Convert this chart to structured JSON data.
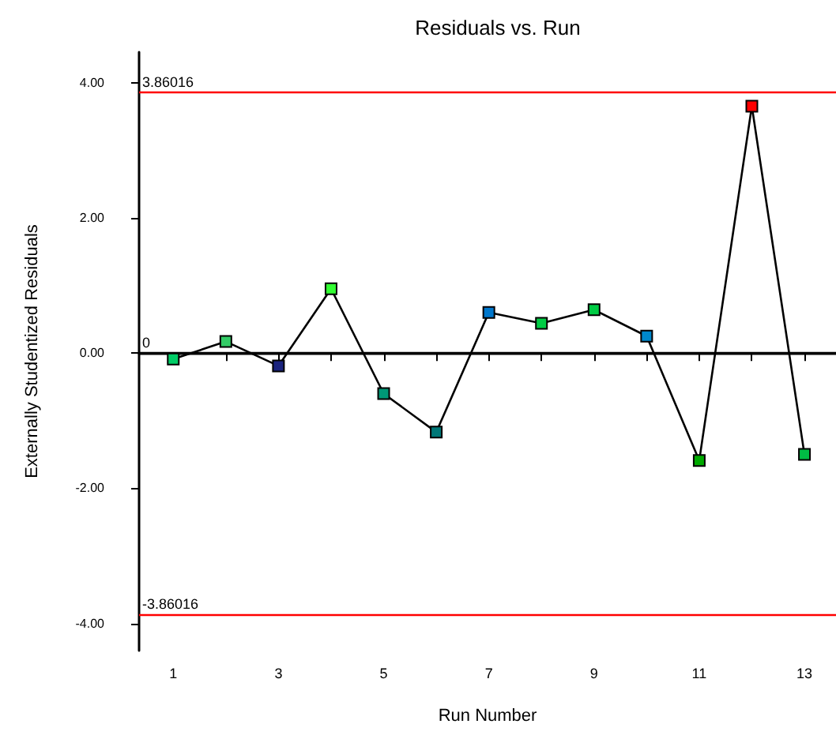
{
  "chart_data": {
    "type": "line",
    "title": "Residuals vs. Run",
    "xlabel": "Run Number",
    "ylabel": "Externally Studentized Residuals",
    "x": [
      1,
      2,
      3,
      4,
      5,
      6,
      7,
      8,
      9,
      10,
      11,
      12,
      13
    ],
    "series": [
      {
        "color": "#000000",
        "colors": [
          "#00cc66",
          "#33cc66",
          "#1a237e",
          "#33ff33",
          "#009977",
          "#007777",
          "#0077cc",
          "#00cc44",
          "#00cc44",
          "#0088cc",
          "#00aa00",
          "#ff0000",
          "#00bb44"
        ],
        "values": [
          -0.09,
          0.17,
          -0.19,
          0.95,
          -0.6,
          -1.17,
          0.6,
          0.44,
          0.64,
          0.25,
          -1.59,
          3.65,
          -1.5
        ]
      }
    ],
    "xlim": [
      0.35,
      13.6
    ],
    "xticks": [
      1,
      {
        "value": 2,
        "label": null
      },
      3,
      {
        "value": 4,
        "label": null
      },
      5,
      {
        "value": 6,
        "label": null
      },
      7,
      {
        "value": 8,
        "label": null
      },
      9,
      {
        "value": 10,
        "label": null
      },
      11,
      {
        "value": 12,
        "label": null
      },
      13
    ],
    "ylim": [
      -4.4,
      4.45
    ],
    "yticks": [
      {
        "value": -4,
        "label": "-4.00"
      },
      {
        "value": -2,
        "label": "-2.00"
      },
      {
        "value": 0,
        "label": "0.00"
      },
      {
        "value": 2,
        "label": "2.00"
      },
      {
        "value": 4,
        "label": "4.00"
      }
    ],
    "ref_lines": [
      {
        "axis": "y",
        "value": 3.86016,
        "label": "3.86016",
        "color": "#ff0000"
      },
      {
        "axis": "y",
        "value": 0,
        "label": "0",
        "color": "#000000"
      },
      {
        "axis": "y",
        "value": -3.86016,
        "label": "-3.86016",
        "color": "#ff0000"
      }
    ],
    "marker": "square",
    "grid": false,
    "line_style": "solid"
  }
}
